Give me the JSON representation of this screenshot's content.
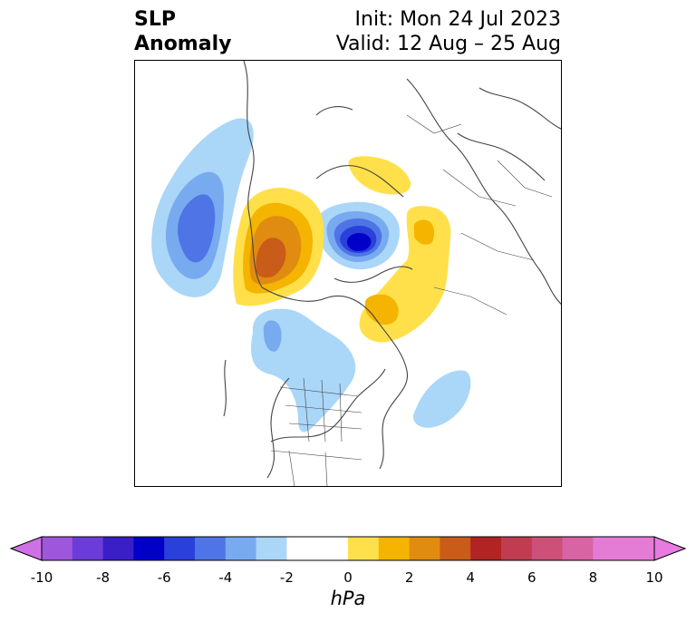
{
  "title": {
    "line1": "SLP",
    "line2": "Anomaly"
  },
  "info": {
    "init": "Init: Mon 24 Jul 2023",
    "valid": "Valid: 12 Aug – 25 Aug"
  },
  "colorbar": {
    "unit": "hPa",
    "ticks": [
      "-10",
      "-8",
      "-6",
      "-4",
      "-2",
      "0",
      "2",
      "4",
      "6",
      "8",
      "10"
    ],
    "levels": [
      -10,
      -9,
      -8,
      -7,
      -6,
      -5,
      -4,
      -3,
      -2,
      -1,
      1,
      2,
      3,
      4,
      5,
      6,
      7,
      8,
      9,
      10
    ],
    "colors": [
      "#9e56dc",
      "#6c3cd8",
      "#3a1ec8",
      "#0000c8",
      "#2a40da",
      "#4e74e6",
      "#78aaf0",
      "#aad6f8",
      "#ffffff",
      "#ffffff",
      "#ffe04a",
      "#f4b400",
      "#e08c10",
      "#c85c18",
      "#b02424",
      "#c03c50",
      "#cc5078",
      "#d864a4",
      "#e47cd6",
      "#e47cd6"
    ],
    "extend_low_color": "#d070e6",
    "extend_high_color": "#e87ae0"
  }
}
